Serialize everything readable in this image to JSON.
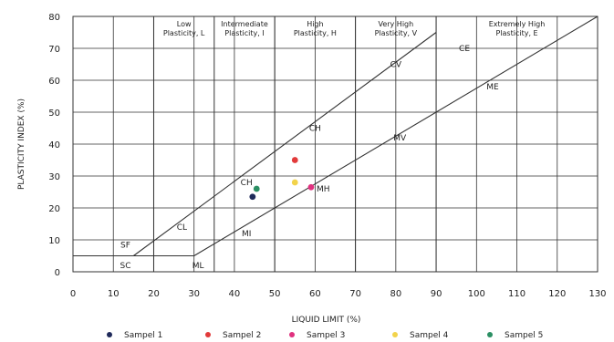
{
  "chart_data": {
    "type": "scatter",
    "xlabel": "LIQUID LIMIT (%)",
    "ylabel": "PLASTICITY INDEX (%)",
    "xlim": [
      0,
      130
    ],
    "ylim": [
      0,
      80
    ],
    "x_ticks": [
      0,
      10,
      20,
      30,
      40,
      50,
      60,
      70,
      80,
      90,
      100,
      110,
      120,
      130
    ],
    "y_ticks": [
      0,
      10,
      20,
      30,
      40,
      50,
      60,
      70,
      80
    ],
    "grid": true,
    "plasticity_zones": [
      {
        "label_lines": [
          "Low",
          "Plasticity, L"
        ],
        "from": 20,
        "to": 35
      },
      {
        "label_lines": [
          "Intermediate",
          "Plasticity, I"
        ],
        "from": 35,
        "to": 50
      },
      {
        "label_lines": [
          "High",
          "Plasticity, H"
        ],
        "from": 50,
        "to": 70
      },
      {
        "label_lines": [
          "Very High",
          "Plasticity, V"
        ],
        "from": 70,
        "to": 90
      },
      {
        "label_lines": [
          "Extremely High",
          "Plasticity, E"
        ],
        "from": 90,
        "to": 130
      }
    ],
    "a_line": {
      "x": [
        15,
        90
      ],
      "y": [
        5,
        75
      ]
    },
    "b_line": {
      "x": [
        30,
        130
      ],
      "y": [
        5,
        80
      ]
    },
    "reference_lines": [
      {
        "x": [
          0,
          15
        ],
        "y": [
          5,
          5
        ]
      },
      {
        "x": [
          0,
          30
        ],
        "y": [
          5,
          5
        ]
      }
    ],
    "region_labels": [
      {
        "text": "SF",
        "x": 13,
        "y": 8.5
      },
      {
        "text": "SC",
        "x": 13,
        "y": 2
      },
      {
        "text": "CL",
        "x": 27,
        "y": 14
      },
      {
        "text": "ML",
        "x": 31,
        "y": 2
      },
      {
        "text": "CH",
        "x": 43,
        "y": 28
      },
      {
        "text": "MI",
        "x": 43,
        "y": 12
      },
      {
        "text": "CH",
        "x": 60,
        "y": 45
      },
      {
        "text": "MH",
        "x": 62,
        "y": 26
      },
      {
        "text": "MV",
        "x": 81,
        "y": 42
      },
      {
        "text": "CV",
        "x": 80,
        "y": 65
      },
      {
        "text": "CE",
        "x": 97,
        "y": 70
      },
      {
        "text": "ME",
        "x": 104,
        "y": 58
      }
    ],
    "series": [
      {
        "name": "Sampel 1",
        "color": "#1f2a5a",
        "points": [
          {
            "x": 44.5,
            "y": 23.5
          }
        ]
      },
      {
        "name": "Sampel 2",
        "color": "#e23a3a",
        "points": [
          {
            "x": 55,
            "y": 35
          }
        ]
      },
      {
        "name": "Sampel 3",
        "color": "#e0317f",
        "points": [
          {
            "x": 59,
            "y": 26.5
          }
        ]
      },
      {
        "name": "Sampel 4",
        "color": "#f2d34b",
        "points": [
          {
            "x": 55,
            "y": 28
          }
        ]
      },
      {
        "name": "Sampel 5",
        "color": "#2b8f63",
        "points": [
          {
            "x": 45.5,
            "y": 26
          }
        ]
      }
    ]
  }
}
